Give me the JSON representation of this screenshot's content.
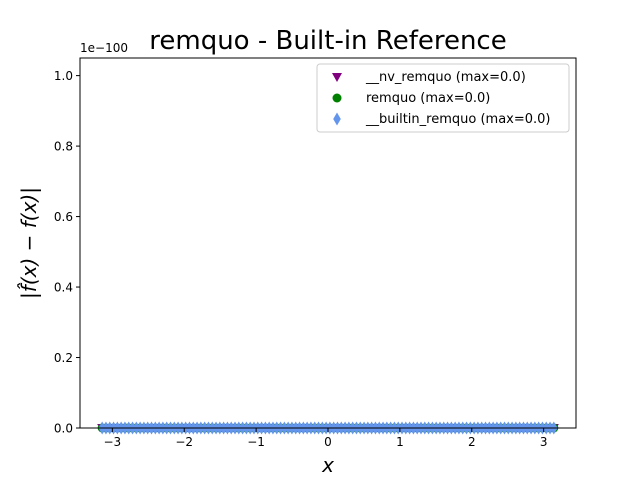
{
  "chart_data": {
    "type": "scatter",
    "title": "remquo - Built-in Reference",
    "xlabel": "x",
    "ylabel": "|f̂(x) − f(x)|",
    "offset_text": "1e−100",
    "xlim": [
      -3.45,
      3.45
    ],
    "ylim": [
      0,
      1.05
    ],
    "x_ticks": [
      -3,
      -2,
      -1,
      0,
      1,
      2,
      3
    ],
    "x_tick_labels": [
      "−3",
      "−2",
      "−1",
      "0",
      "1",
      "2",
      "3"
    ],
    "y_ticks": [
      0.0,
      0.2,
      0.4,
      0.6,
      0.8,
      1.0
    ],
    "y_tick_labels": [
      "0.0",
      "0.2",
      "0.4",
      "0.6",
      "0.8",
      "1.0"
    ],
    "x_range": [
      -3.14159,
      3.14159
    ],
    "num_points": 120,
    "legend_position": "top-right",
    "series": [
      {
        "name": "__nv_remquo (max=0.0)",
        "marker": "triangle-down",
        "color": "#800080",
        "value": 0.0
      },
      {
        "name": "remquo (max=0.0)",
        "marker": "circle",
        "color": "#008000",
        "value": 0.0
      },
      {
        "name": "__builtin_remquo (max=0.0)",
        "marker": "thin-diamond",
        "color": "#6495ED",
        "value": 0.0
      }
    ]
  }
}
